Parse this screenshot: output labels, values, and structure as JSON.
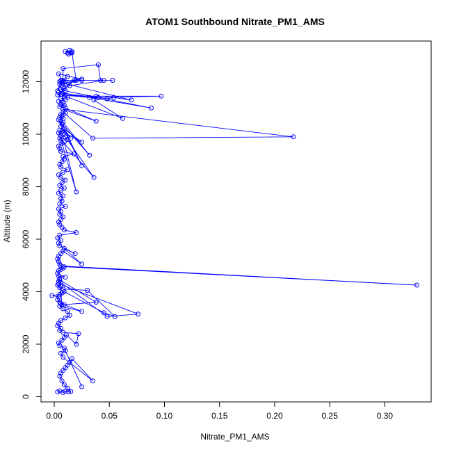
{
  "chart_data": {
    "type": "line",
    "title": "ATOM1 Southbound Nitrate_PM1_AMS",
    "xlabel": "Nitrate_PM1_AMS",
    "ylabel": "Altitude (m)",
    "xlim": [
      -0.012,
      0.342
    ],
    "ylim": [
      -200,
      13550
    ],
    "xticks": [
      0.0,
      0.05,
      0.1,
      0.15,
      0.2,
      0.25,
      0.3
    ],
    "xtick_labels": [
      "0.00",
      "0.05",
      "0.10",
      "0.15",
      "0.20",
      "0.25",
      "0.30"
    ],
    "yticks": [
      0,
      2000,
      4000,
      6000,
      8000,
      10000,
      12000
    ],
    "ytick_labels": [
      "0",
      "2000",
      "4000",
      "6000",
      "8000",
      "10000",
      "12000"
    ],
    "grid": false,
    "series_color": "#0000ff",
    "marker": "open-circle",
    "series": [
      {
        "x": [
          0.003,
          0.005,
          0.008,
          0.01,
          0.013,
          0.015,
          0.012,
          0.009,
          0.007,
          0.005,
          0.006,
          0.008,
          0.01,
          0.012,
          0.014,
          0.016,
          0.035,
          0.008,
          0.006,
          0.01,
          0.025,
          0.009,
          0.005,
          0.004,
          0.007,
          0.009,
          0.011,
          0.02,
          0.022,
          0.008,
          0.005,
          0.006,
          0.003,
          0.004,
          0.006,
          0.01,
          0.014,
          0.012,
          0.008,
          0.005,
          0.025,
          0.009,
          0.006,
          0.005,
          0.003,
          0.004,
          -0.002,
          0.005,
          0.007,
          0.009,
          0.045,
          0.055,
          0.03,
          0.008,
          0.005,
          0.006,
          0.003,
          0.004,
          0.076,
          0.048,
          0.006,
          0.004,
          0.005,
          0.038,
          0.007,
          0.005,
          0.004,
          0.01,
          0.003,
          0.004,
          0.006,
          0.008,
          0.009,
          0.329,
          0.006,
          0.005,
          0.004,
          0.003,
          0.004,
          0.006,
          0.008,
          0.025,
          0.009,
          0.019,
          0.005,
          0.004,
          0.006,
          0.003,
          0.005,
          0.02,
          0.009,
          0.007,
          0.005,
          0.004,
          0.006,
          0.008,
          0.005,
          0.006,
          0.004,
          0.01,
          0.005,
          0.007,
          0.006,
          0.008,
          0.004,
          0.006,
          0.009,
          0.005,
          0.007,
          0.01,
          0.006,
          0.004,
          0.008,
          0.012,
          0.006,
          0.005,
          0.007,
          0.009,
          0.008,
          0.018,
          0.006,
          0.005,
          0.004,
          0.007,
          0.02,
          0.009,
          0.006,
          0.012,
          0.005,
          0.036,
          0.01,
          0.006,
          0.008,
          0.004,
          0.007,
          0.005,
          0.025,
          0.009,
          0.015,
          0.006,
          0.007,
          0.032,
          0.008,
          0.006,
          0.025,
          0.004,
          0.008,
          0.005,
          0.007,
          0.006,
          0.01,
          0.008,
          0.035,
          0.217,
          0.008,
          0.038,
          0.01,
          0.005,
          0.009,
          0.006,
          0.008,
          0.004,
          0.01,
          0.006,
          0.012,
          0.009,
          0.007,
          0.062,
          0.036,
          0.04,
          0.008,
          0.004,
          0.088,
          0.01,
          0.006,
          0.009,
          0.014,
          0.045,
          0.025,
          0.008,
          0.07,
          0.054,
          0.048,
          0.006,
          0.032,
          0.04,
          0.097,
          0.038,
          0.003,
          0.018,
          0.008,
          0.01,
          0.007,
          0.012,
          0.005,
          0.025,
          0.004,
          0.008,
          0.008,
          0.04,
          0.042,
          0.053,
          0.006,
          0.003,
          0.007,
          0.005,
          0.02,
          0.016,
          0.01,
          0.012,
          0.014,
          0.015,
          0.013,
          0.016
        ],
        "y": [
          180,
          220,
          160,
          210,
          190,
          200,
          320,
          460,
          600,
          780,
          900,
          1000,
          1100,
          1200,
          1300,
          1450,
          600,
          1500,
          1650,
          1750,
          380,
          1850,
          1950,
          2050,
          2150,
          2250,
          2350,
          2000,
          2400,
          2450,
          2520,
          2600,
          2700,
          2800,
          2900,
          3000,
          3100,
          3250,
          3350,
          3450,
          3250,
          3500,
          3550,
          3600,
          3700,
          3800,
          3850,
          3900,
          3950,
          4000,
          3200,
          3050,
          4050,
          4100,
          4150,
          4200,
          4250,
          4300,
          3150,
          3050,
          4350,
          4400,
          4450,
          3600,
          3500,
          4500,
          4600,
          4550,
          4700,
          4800,
          4850,
          4900,
          4950,
          4250,
          4980,
          5050,
          5150,
          5250,
          5350,
          5450,
          5550,
          5050,
          5650,
          5450,
          5750,
          5850,
          5950,
          6050,
          6150,
          6250,
          6350,
          6450,
          6550,
          6650,
          6750,
          6850,
          6950,
          7050,
          7150,
          7250,
          7350,
          7450,
          7550,
          7650,
          7750,
          7850,
          7950,
          8050,
          8150,
          8250,
          8350,
          8450,
          8550,
          8650,
          8750,
          8850,
          8950,
          9050,
          9150,
          9250,
          9350,
          9450,
          9550,
          9650,
          7800,
          9700,
          9750,
          9800,
          9850,
          8350,
          9900,
          9950,
          10000,
          10050,
          10100,
          10150,
          9700,
          10200,
          9850,
          10300,
          10400,
          9200,
          10450,
          10500,
          8800,
          10550,
          10600,
          10650,
          10700,
          10750,
          10800,
          10850,
          9850,
          9900,
          10950,
          10500,
          11000,
          11050,
          11100,
          11150,
          11200,
          11250,
          11300,
          11350,
          11400,
          11450,
          11500,
          10600,
          11300,
          11400,
          11550,
          11600,
          11000,
          11650,
          11700,
          11750,
          11850,
          12050,
          12050,
          11950,
          11300,
          11400,
          11350,
          11500,
          11400,
          11400,
          11450,
          11450,
          11500,
          12050,
          11800,
          12000,
          12050,
          12200,
          12000,
          12100,
          12300,
          12000,
          12500,
          12650,
          12050,
          12050,
          12050,
          11650,
          11950,
          11900,
          12050,
          13100,
          13150,
          13100,
          13200,
          13100,
          13050,
          13150
        ]
      }
    ]
  }
}
